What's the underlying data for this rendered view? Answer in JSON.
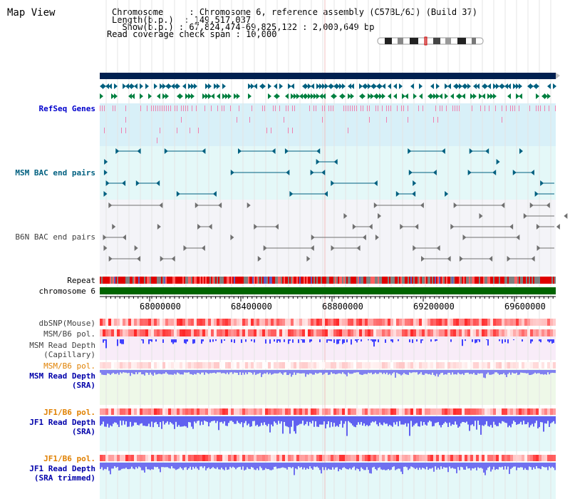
{
  "title": "Map View",
  "info": {
    "chromosome_line": "Chromosome     : Chromosome 6, reference assembly (C57BL/6J) (Build 37)",
    "length_line": "Length(b.p.)  : 149,517,037",
    "show_line": "  Show(b.p.) : 67,824,474-69,825,122 : 2,000,649 bp",
    "coverage_line": "Read coverage check span : 10,000"
  },
  "tracks": {
    "refseq": "RefSeq Genes",
    "msm_bac": "MSM BAC end pairs",
    "b6n_bac": "B6N BAC end pairs",
    "repeat": "Repeat",
    "chromosome": "chromosome 6",
    "dbsnp": "dbSNP(Mouse)",
    "msm_b6_pol_1": "MSM/B6 pol.",
    "msm_depth_cap_1": "MSM Read Depth",
    "msm_depth_cap_2": "(Capillary)",
    "msm_b6_pol_2": "MSM/B6 pol.",
    "msm_depth_sra_1": "MSM Read Depth",
    "msm_depth_sra_2": "(SRA)",
    "jf1_pol_1": "JF1/B6 pol.",
    "jf1_depth_sra_1": "JF1 Read Depth",
    "jf1_depth_sra_2": "(SRA)",
    "jf1_pol_2": "JF1/B6 pol.",
    "jf1_depth_trim_1": "JF1 Read Depth",
    "jf1_depth_trim_2": "(SRA trimmed)"
  },
  "axis_ticks": [
    "68000000",
    "68400000",
    "68800000",
    "69200000",
    "69600000"
  ],
  "colors": {
    "msm_label": "#006080",
    "refseq_label": "#0000cc",
    "orange_label": "#e08000",
    "depth_label": "#0000aa",
    "chromosome_bar": "#006400",
    "navy_bar": "#002050"
  }
}
